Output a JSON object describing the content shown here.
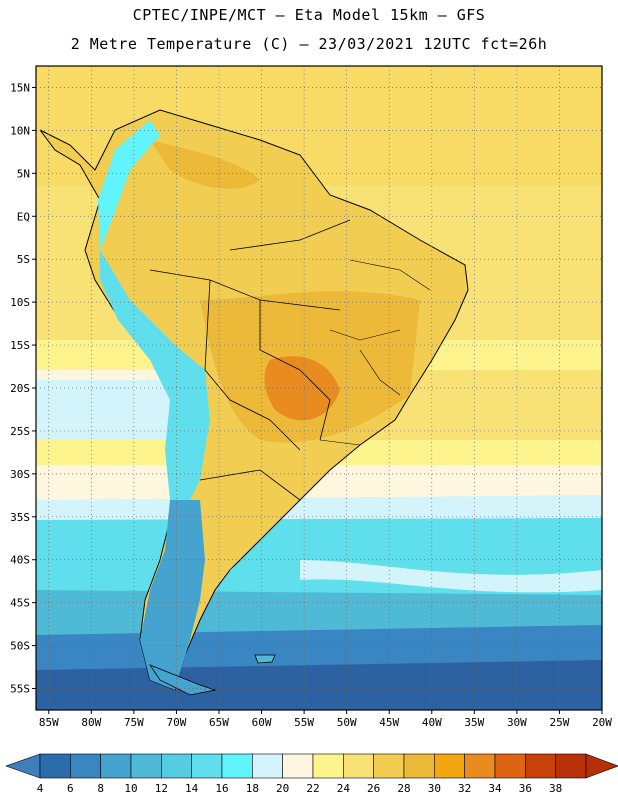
{
  "header": {
    "line1": "CPTEC/INPE/MCT –  Eta Model 15km – GFS",
    "line2": "2 Metre Temperature (C) – 23/03/2021 12UTC fct=26h"
  },
  "map": {
    "lat_labels": [
      "15N",
      "10N",
      "5N",
      "EQ",
      "5S",
      "10S",
      "15S",
      "20S",
      "25S",
      "30S",
      "35S",
      "40S",
      "45S",
      "50S",
      "55S"
    ],
    "lon_labels": [
      "85W",
      "80W",
      "75W",
      "70W",
      "65W",
      "60W",
      "55W",
      "50W",
      "45W",
      "40W",
      "35W",
      "30W",
      "25W",
      "20W"
    ],
    "lat_range": [
      15,
      -55
    ],
    "lon_range": [
      -85,
      -20
    ]
  },
  "colorbar": {
    "unit": "C",
    "ticks": [
      "4",
      "6",
      "8",
      "10",
      "12",
      "14",
      "16",
      "18",
      "20",
      "22",
      "24",
      "26",
      "28",
      "30",
      "32",
      "34",
      "36",
      "38"
    ],
    "colors": [
      "#2c6cac",
      "#3a86c2",
      "#45a3cf",
      "#4fbad6",
      "#56cce0",
      "#5fdfec",
      "#62f4fc",
      "#d4f4fc",
      "#fff6df",
      "#fef48e",
      "#f9e275",
      "#f1ce52",
      "#ecb939",
      "#f2a60f",
      "#e88c1f",
      "#dd6511",
      "#c8400a",
      "#b83109"
    ],
    "low_color": "#3e7fbb",
    "high_color": "#b52f09"
  }
}
